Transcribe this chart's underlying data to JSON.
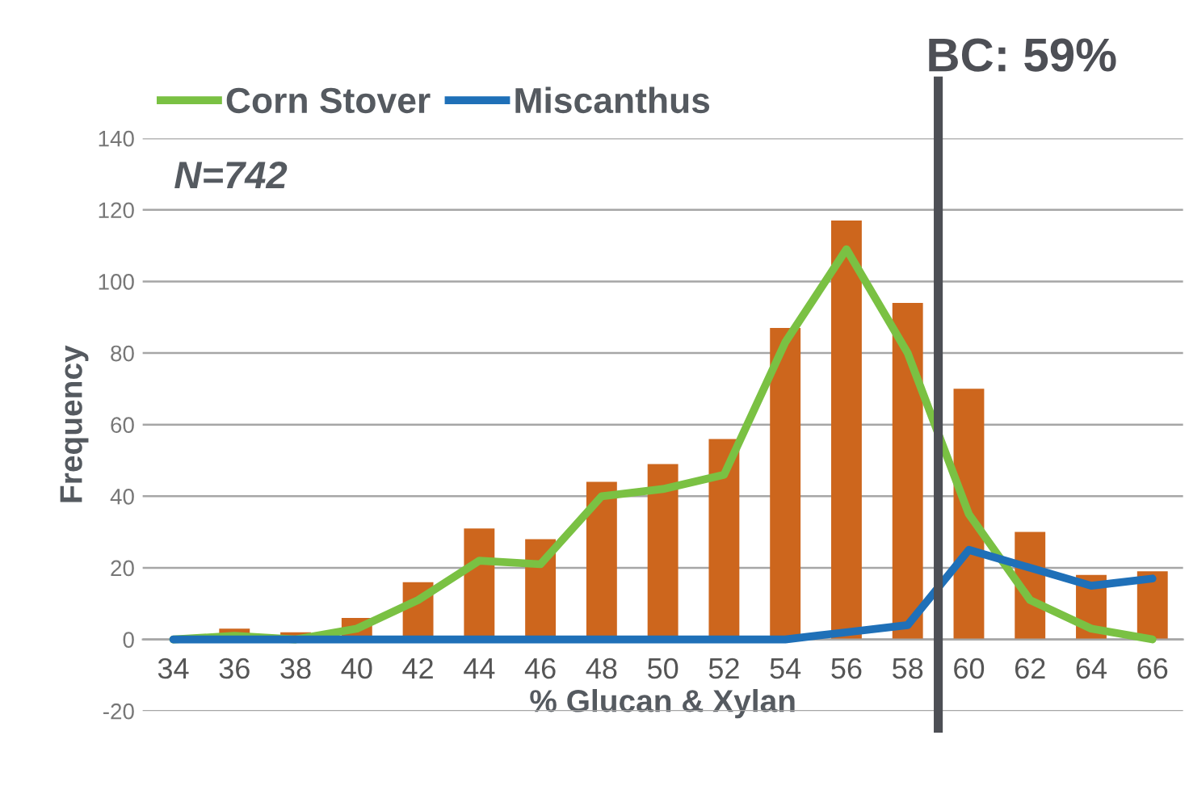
{
  "chart_data": {
    "type": "bar",
    "xlabel": "% Glucan & Xylan",
    "ylabel": "Frequency",
    "x": [
      34,
      36,
      38,
      40,
      42,
      44,
      46,
      48,
      50,
      52,
      54,
      56,
      58,
      60,
      62,
      64,
      66
    ],
    "series": [
      {
        "color": "#cd661d",
        "values": [
          0,
          3,
          2,
          6,
          16,
          31,
          28,
          44,
          49,
          56,
          87,
          117,
          94,
          70,
          30,
          18,
          19
        ]
      },
      {
        "type": "line",
        "name": "Corn Stover",
        "color": "#7ac143",
        "values": [
          0,
          1,
          0,
          3,
          11,
          22,
          21,
          40,
          42,
          46,
          83,
          109,
          80,
          35,
          11,
          3,
          0
        ]
      },
      {
        "type": "line",
        "name": "Miscanthus",
        "color": "#1f70b8",
        "values": [
          0,
          0,
          0,
          0,
          0,
          0,
          0,
          0,
          0,
          0,
          0,
          2,
          4,
          25,
          20,
          15,
          17
        ]
      }
    ],
    "xlim": [
      33,
      67
    ],
    "xticks": [
      34,
      36,
      38,
      40,
      42,
      44,
      46,
      48,
      50,
      52,
      54,
      56,
      58,
      60,
      62,
      64,
      66
    ],
    "ylim": [
      -20,
      140
    ],
    "yticks": [
      -20,
      0,
      20,
      40,
      60,
      80,
      100,
      120,
      140
    ],
    "grid": "y",
    "legend": "top left",
    "line_style": "solid",
    "marker": "none",
    "ref_lines": [
      {
        "axis": "x",
        "value": 59,
        "label": "BC: 59%",
        "color": "#4d4f55"
      }
    ],
    "annotations": [
      "N=742"
    ]
  }
}
